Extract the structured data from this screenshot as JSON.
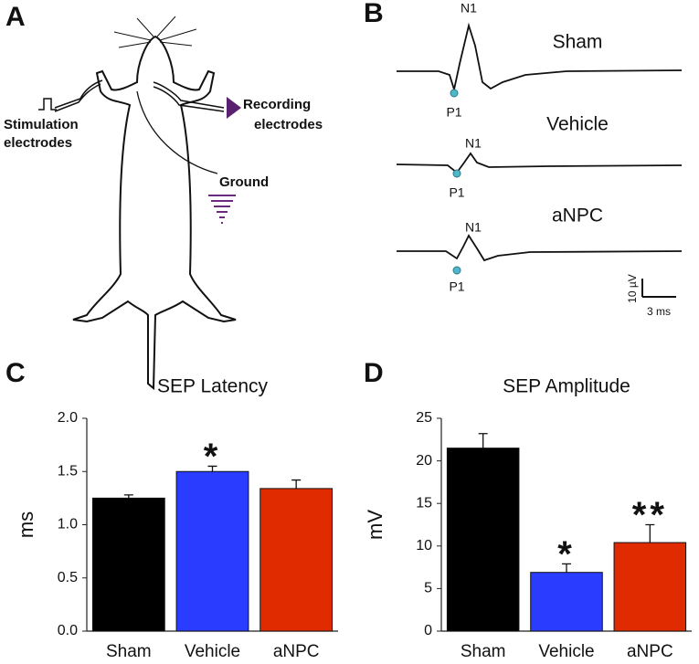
{
  "panels": [
    "A",
    "B",
    "C",
    "D"
  ],
  "diagram": {
    "stimulation": [
      "Stimulation",
      "electrodes"
    ],
    "recording": [
      "Recording",
      "electrodes"
    ],
    "ground": "Ground"
  },
  "traces": {
    "groups": [
      {
        "name": "Sham",
        "peak_top": "N1",
        "peak_bottom": "P1"
      },
      {
        "name": "Vehicle",
        "peak_top": "N1",
        "peak_bottom": "P1"
      },
      {
        "name": "aNPC",
        "peak_top": "N1",
        "peak_bottom": "P1"
      }
    ],
    "scale_y": "10 µV",
    "scale_x": "3 ms"
  },
  "chart_data": [
    {
      "type": "bar",
      "title": "SEP Latency",
      "ylabel": "ms",
      "categories": [
        "Sham",
        "Vehicle",
        "aNPC"
      ],
      "values": [
        1.25,
        1.5,
        1.34
      ],
      "errors": [
        0.03,
        0.05,
        0.08
      ],
      "colors": [
        "#000000",
        "#2a3cff",
        "#e02a00"
      ],
      "annotations": [
        null,
        "*",
        null
      ],
      "ylim": [
        0,
        2
      ],
      "yticks": [
        {
          "value": 0,
          "label": "0.0"
        },
        0.5,
        {
          "value": 1,
          "label": "1.0"
        },
        1.5,
        {
          "value": 2,
          "label": "2.0"
        }
      ]
    },
    {
      "type": "bar",
      "title": "SEP Amplitude",
      "ylabel": "mV",
      "categories": [
        "Sham",
        "Vehicle",
        "aNPC"
      ],
      "values": [
        21.5,
        6.9,
        10.4
      ],
      "errors": [
        1.7,
        1.0,
        2.1
      ],
      "colors": [
        "#000000",
        "#2a3cff",
        "#e02a00"
      ],
      "annotations": [
        null,
        "*",
        "**"
      ],
      "ylim": [
        0,
        25
      ],
      "yticks": [
        0,
        5,
        10,
        15,
        20,
        25
      ]
    }
  ]
}
